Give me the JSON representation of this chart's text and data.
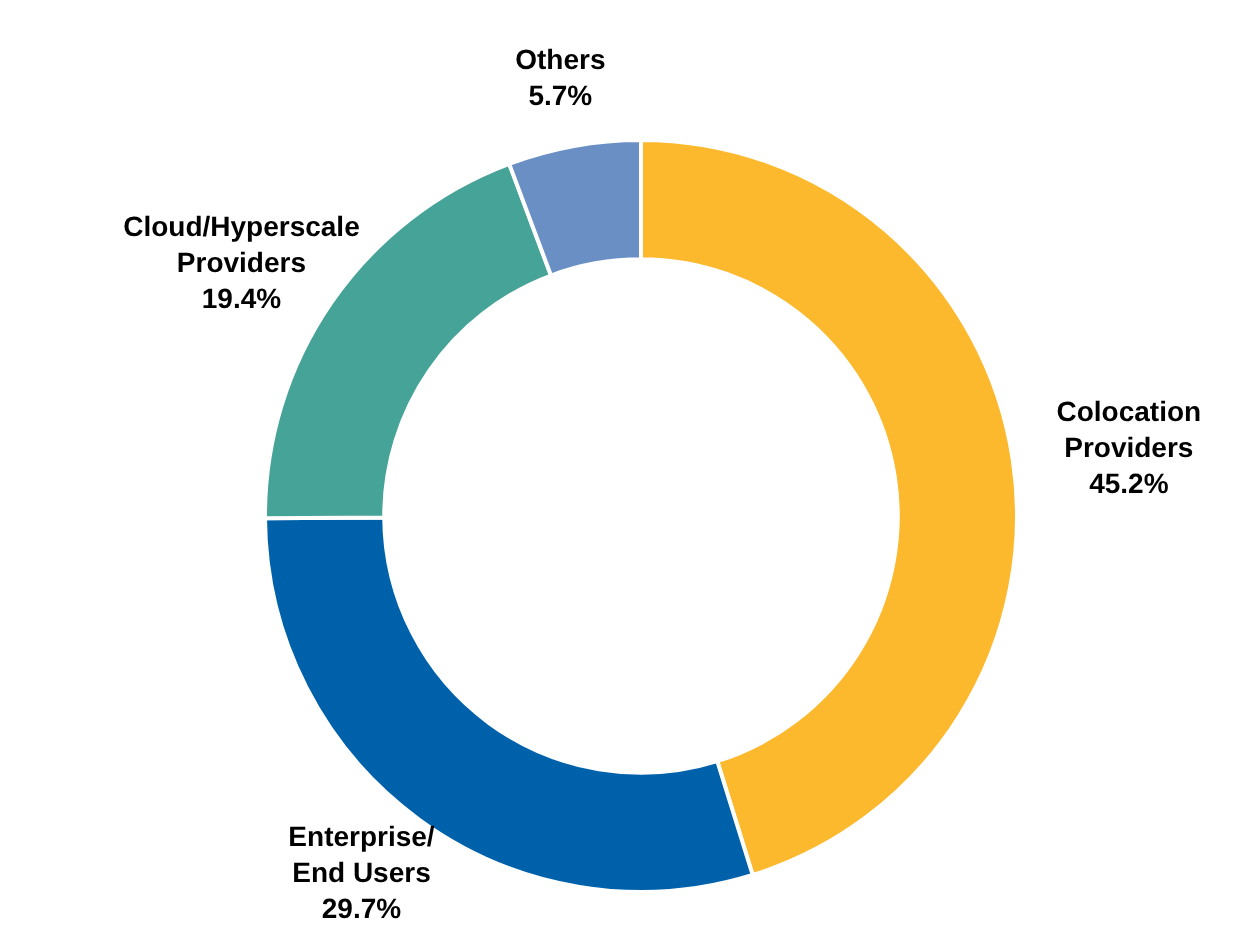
{
  "chart_data": {
    "type": "donut",
    "categories": [
      "Colocation Providers",
      "Enterprise/ End Users",
      "Cloud/Hyperscale Providers",
      "Others"
    ],
    "values": [
      45.2,
      29.7,
      19.4,
      5.7
    ],
    "colors": [
      "#fdb92e",
      "#0061ab",
      "#46a397",
      "#6a8fc4"
    ],
    "value_labels": [
      "45.2%",
      "29.7%",
      "19.4%",
      "5.7%"
    ],
    "legend": false
  }
}
